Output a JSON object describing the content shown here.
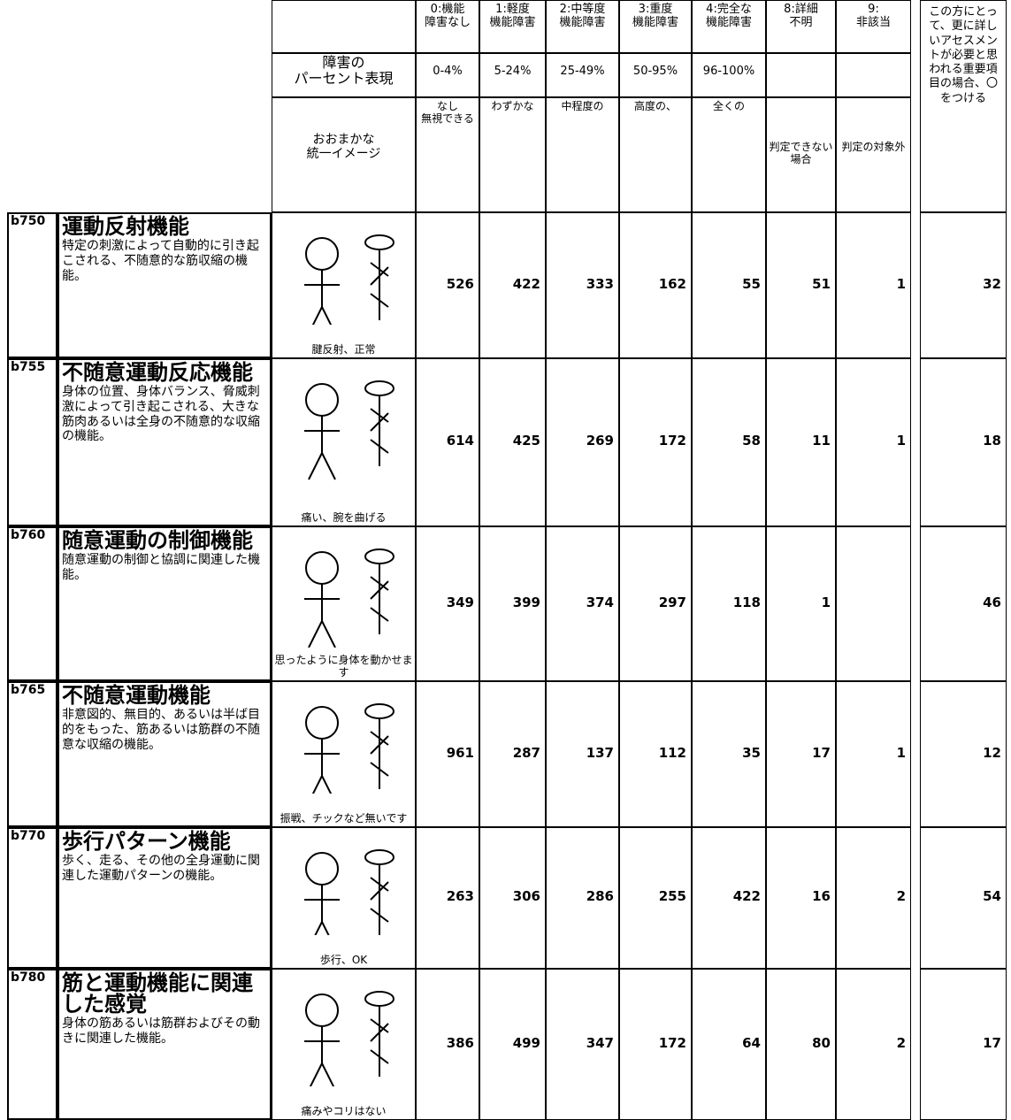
{
  "header": {
    "left_rows": [
      "障害の\nパーセント表現",
      "おおまかな\n統一イメージ"
    ],
    "columns": [
      {
        "label": "0:機能\n障害なし",
        "range": "0-4%",
        "image": "なし\n無視できる"
      },
      {
        "label": "1:軽度\n機能障害",
        "range": "5-24%",
        "image": "わずかな"
      },
      {
        "label": "2:中等度\n機能障害",
        "range": "25-49%",
        "image": "中程度の"
      },
      {
        "label": "3:重度\n機能障害",
        "range": "50-95%",
        "image": "高度の、"
      },
      {
        "label": "4:完全な\n機能障害",
        "range": "96-100%",
        "image": "全くの"
      },
      {
        "label": "8:詳細\n不明",
        "image": "判定できない場合"
      },
      {
        "label": "9:\n非該当",
        "image": "判定の対象外"
      }
    ],
    "last_column": "この方にとって、更に詳しいアセスメントが必要と思われる重要項目の場合、〇をつける"
  },
  "rows": [
    {
      "code": "b750",
      "title": "運動反射機能",
      "description": "特定の刺激によって自動的に引き起こされる、不随意的な筋収縮の機能。",
      "caption": "腱反射、正常",
      "values": [
        526,
        422,
        333,
        162,
        55,
        51,
        1,
        32
      ]
    },
    {
      "code": "b755",
      "title": "不随意運動反応機能",
      "description": "身体の位置、身体バランス、脅威刺激によって引き起こされる、大きな筋肉あるいは全身の不随意的な収縮の機能。",
      "caption": "痛い、腕を曲げる",
      "values": [
        614,
        425,
        269,
        172,
        58,
        11,
        1,
        18
      ]
    },
    {
      "code": "b760",
      "title": "随意運動の制御機能",
      "description": "随意運動の制御と協調に関連した機能。",
      "caption": "思ったように身体を動かせます",
      "values": [
        349,
        399,
        374,
        297,
        118,
        1,
        null,
        46
      ]
    },
    {
      "code": "b765",
      "title": "不随意運動機能",
      "description": "非意図的、無目的、あるいは半ば目的をもった、筋あるいは筋群の不随意な収縮の機能。",
      "caption": "振戦、チックなど無いです",
      "values": [
        961,
        287,
        137,
        112,
        35,
        17,
        1,
        12
      ]
    },
    {
      "code": "b770",
      "title": "歩行パターン機能",
      "description": "歩く、走る、その他の全身運動に関連した運動パターンの機能。",
      "caption": "歩行、OK",
      "values": [
        263,
        306,
        286,
        255,
        422,
        16,
        2,
        54
      ]
    },
    {
      "code": "b780",
      "title": "筋と運動機能に関連した感覚",
      "description": "身体の筋あるいは筋群およびその動きに関連した機能。",
      "caption": "痛みやコリはない",
      "values": [
        386,
        499,
        347,
        172,
        64,
        80,
        2,
        17
      ]
    }
  ]
}
